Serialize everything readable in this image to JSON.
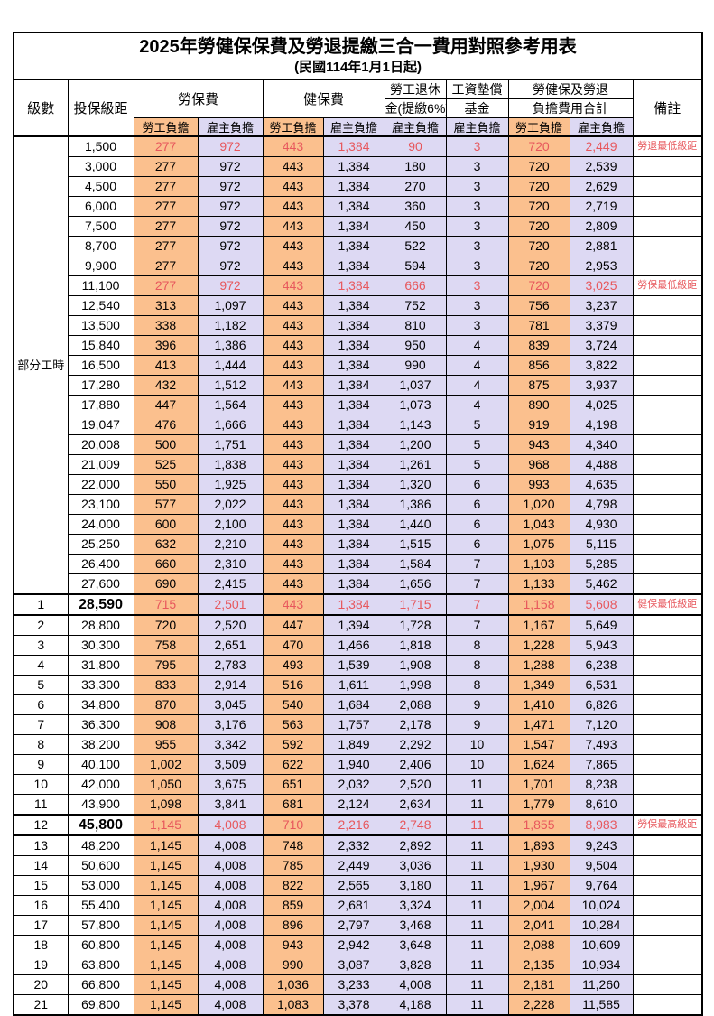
{
  "title": {
    "main": "2025年勞健保保費及勞退提繳三合一費用對照參考用表",
    "sub": "(民國114年1月1日起)"
  },
  "colors": {
    "employee_column_bg": "#FBC08E",
    "employer_column_bg": "#DDD9F3",
    "highlight_text": "#E7575C",
    "border": "#000000"
  },
  "table": {
    "headers": {
      "level": "級數",
      "salary": "投保級距",
      "labor_fee": "勞保費",
      "health_fee": "健保費",
      "pension_line1": "勞工退休",
      "pension_line2": "金(提繳6%)",
      "wage_fund_line1": "工資墊償",
      "wage_fund_line2": "基金",
      "total_line1": "勞健保及勞退",
      "total_line2": "負擔費用合計",
      "note": "備註",
      "employee": "勞工負擔",
      "employer": "雇主負擔"
    },
    "group": {
      "label": "部分工時",
      "rowspan": 23
    },
    "rows": [
      {
        "level": "",
        "salary": "1,500",
        "fees": [
          "277",
          "972",
          "443",
          "1,384",
          "90",
          "3",
          "720",
          "2,449"
        ],
        "note": "勞退最低級距",
        "red": true,
        "thick": false
      },
      {
        "level": "",
        "salary": "3,000",
        "fees": [
          "277",
          "972",
          "443",
          "1,384",
          "180",
          "3",
          "720",
          "2,539"
        ],
        "note": "",
        "red": false,
        "thick": false
      },
      {
        "level": "",
        "salary": "4,500",
        "fees": [
          "277",
          "972",
          "443",
          "1,384",
          "270",
          "3",
          "720",
          "2,629"
        ],
        "note": "",
        "red": false,
        "thick": false
      },
      {
        "level": "",
        "salary": "6,000",
        "fees": [
          "277",
          "972",
          "443",
          "1,384",
          "360",
          "3",
          "720",
          "2,719"
        ],
        "note": "",
        "red": false,
        "thick": false
      },
      {
        "level": "",
        "salary": "7,500",
        "fees": [
          "277",
          "972",
          "443",
          "1,384",
          "450",
          "3",
          "720",
          "2,809"
        ],
        "note": "",
        "red": false,
        "thick": false
      },
      {
        "level": "",
        "salary": "8,700",
        "fees": [
          "277",
          "972",
          "443",
          "1,384",
          "522",
          "3",
          "720",
          "2,881"
        ],
        "note": "",
        "red": false,
        "thick": false
      },
      {
        "level": "",
        "salary": "9,900",
        "fees": [
          "277",
          "972",
          "443",
          "1,384",
          "594",
          "3",
          "720",
          "2,953"
        ],
        "note": "",
        "red": false,
        "thick": false
      },
      {
        "level": "",
        "salary": "11,100",
        "fees": [
          "277",
          "972",
          "443",
          "1,384",
          "666",
          "3",
          "720",
          "3,025"
        ],
        "note": "勞保最低級距",
        "red": true,
        "thick": false
      },
      {
        "level": "",
        "salary": "12,540",
        "fees": [
          "313",
          "1,097",
          "443",
          "1,384",
          "752",
          "3",
          "756",
          "3,237"
        ],
        "note": "",
        "red": false,
        "thick": false
      },
      {
        "level": "",
        "salary": "13,500",
        "fees": [
          "338",
          "1,182",
          "443",
          "1,384",
          "810",
          "3",
          "781",
          "3,379"
        ],
        "note": "",
        "red": false,
        "thick": false
      },
      {
        "level": "",
        "salary": "15,840",
        "fees": [
          "396",
          "1,386",
          "443",
          "1,384",
          "950",
          "4",
          "839",
          "3,724"
        ],
        "note": "",
        "red": false,
        "thick": false
      },
      {
        "level": "",
        "salary": "16,500",
        "fees": [
          "413",
          "1,444",
          "443",
          "1,384",
          "990",
          "4",
          "856",
          "3,822"
        ],
        "note": "",
        "red": false,
        "thick": false
      },
      {
        "level": "",
        "salary": "17,280",
        "fees": [
          "432",
          "1,512",
          "443",
          "1,384",
          "1,037",
          "4",
          "875",
          "3,937"
        ],
        "note": "",
        "red": false,
        "thick": false
      },
      {
        "level": "",
        "salary": "17,880",
        "fees": [
          "447",
          "1,564",
          "443",
          "1,384",
          "1,073",
          "4",
          "890",
          "4,025"
        ],
        "note": "",
        "red": false,
        "thick": false
      },
      {
        "level": "",
        "salary": "19,047",
        "fees": [
          "476",
          "1,666",
          "443",
          "1,384",
          "1,143",
          "5",
          "919",
          "4,198"
        ],
        "note": "",
        "red": false,
        "thick": false
      },
      {
        "level": "",
        "salary": "20,008",
        "fees": [
          "500",
          "1,751",
          "443",
          "1,384",
          "1,200",
          "5",
          "943",
          "4,340"
        ],
        "note": "",
        "red": false,
        "thick": false
      },
      {
        "level": "",
        "salary": "21,009",
        "fees": [
          "525",
          "1,838",
          "443",
          "1,384",
          "1,261",
          "5",
          "968",
          "4,488"
        ],
        "note": "",
        "red": false,
        "thick": false
      },
      {
        "level": "",
        "salary": "22,000",
        "fees": [
          "550",
          "1,925",
          "443",
          "1,384",
          "1,320",
          "6",
          "993",
          "4,635"
        ],
        "note": "",
        "red": false,
        "thick": false
      },
      {
        "level": "",
        "salary": "23,100",
        "fees": [
          "577",
          "2,022",
          "443",
          "1,384",
          "1,386",
          "6",
          "1,020",
          "4,798"
        ],
        "note": "",
        "red": false,
        "thick": false
      },
      {
        "level": "",
        "salary": "24,000",
        "fees": [
          "600",
          "2,100",
          "443",
          "1,384",
          "1,440",
          "6",
          "1,043",
          "4,930"
        ],
        "note": "",
        "red": false,
        "thick": false
      },
      {
        "level": "",
        "salary": "25,250",
        "fees": [
          "632",
          "2,210",
          "443",
          "1,384",
          "1,515",
          "6",
          "1,075",
          "5,115"
        ],
        "note": "",
        "red": false,
        "thick": false
      },
      {
        "level": "",
        "salary": "26,400",
        "fees": [
          "660",
          "2,310",
          "443",
          "1,384",
          "1,584",
          "7",
          "1,103",
          "5,285"
        ],
        "note": "",
        "red": false,
        "thick": false
      },
      {
        "level": "",
        "salary": "27,600",
        "fees": [
          "690",
          "2,415",
          "443",
          "1,384",
          "1,656",
          "7",
          "1,133",
          "5,462"
        ],
        "note": "",
        "red": false,
        "thick": false
      },
      {
        "level": "1",
        "salary": "28,590",
        "fees": [
          "715",
          "2,501",
          "443",
          "1,384",
          "1,715",
          "7",
          "1,158",
          "5,608"
        ],
        "note": "健保最低級距",
        "red": true,
        "thick": true
      },
      {
        "level": "2",
        "salary": "28,800",
        "fees": [
          "720",
          "2,520",
          "447",
          "1,394",
          "1,728",
          "7",
          "1,167",
          "5,649"
        ],
        "note": "",
        "red": false,
        "thick": false
      },
      {
        "level": "3",
        "salary": "30,300",
        "fees": [
          "758",
          "2,651",
          "470",
          "1,466",
          "1,818",
          "8",
          "1,228",
          "5,943"
        ],
        "note": "",
        "red": false,
        "thick": false
      },
      {
        "level": "4",
        "salary": "31,800",
        "fees": [
          "795",
          "2,783",
          "493",
          "1,539",
          "1,908",
          "8",
          "1,288",
          "6,238"
        ],
        "note": "",
        "red": false,
        "thick": false
      },
      {
        "level": "5",
        "salary": "33,300",
        "fees": [
          "833",
          "2,914",
          "516",
          "1,611",
          "1,998",
          "8",
          "1,349",
          "6,531"
        ],
        "note": "",
        "red": false,
        "thick": false
      },
      {
        "level": "6",
        "salary": "34,800",
        "fees": [
          "870",
          "3,045",
          "540",
          "1,684",
          "2,088",
          "9",
          "1,410",
          "6,826"
        ],
        "note": "",
        "red": false,
        "thick": false
      },
      {
        "level": "7",
        "salary": "36,300",
        "fees": [
          "908",
          "3,176",
          "563",
          "1,757",
          "2,178",
          "9",
          "1,471",
          "7,120"
        ],
        "note": "",
        "red": false,
        "thick": false
      },
      {
        "level": "8",
        "salary": "38,200",
        "fees": [
          "955",
          "3,342",
          "592",
          "1,849",
          "2,292",
          "10",
          "1,547",
          "7,493"
        ],
        "note": "",
        "red": false,
        "thick": false
      },
      {
        "level": "9",
        "salary": "40,100",
        "fees": [
          "1,002",
          "3,509",
          "622",
          "1,940",
          "2,406",
          "10",
          "1,624",
          "7,865"
        ],
        "note": "",
        "red": false,
        "thick": false
      },
      {
        "level": "10",
        "salary": "42,000",
        "fees": [
          "1,050",
          "3,675",
          "651",
          "2,032",
          "2,520",
          "11",
          "1,701",
          "8,238"
        ],
        "note": "",
        "red": false,
        "thick": false
      },
      {
        "level": "11",
        "salary": "43,900",
        "fees": [
          "1,098",
          "3,841",
          "681",
          "2,124",
          "2,634",
          "11",
          "1,779",
          "8,610"
        ],
        "note": "",
        "red": false,
        "thick": false
      },
      {
        "level": "12",
        "salary": "45,800",
        "fees": [
          "1,145",
          "4,008",
          "710",
          "2,216",
          "2,748",
          "11",
          "1,855",
          "8,983"
        ],
        "note": "勞保最高級距",
        "red": true,
        "thick": true
      },
      {
        "level": "13",
        "salary": "48,200",
        "fees": [
          "1,145",
          "4,008",
          "748",
          "2,332",
          "2,892",
          "11",
          "1,893",
          "9,243"
        ],
        "note": "",
        "red": false,
        "thick": false
      },
      {
        "level": "14",
        "salary": "50,600",
        "fees": [
          "1,145",
          "4,008",
          "785",
          "2,449",
          "3,036",
          "11",
          "1,930",
          "9,504"
        ],
        "note": "",
        "red": false,
        "thick": false
      },
      {
        "level": "15",
        "salary": "53,000",
        "fees": [
          "1,145",
          "4,008",
          "822",
          "2,565",
          "3,180",
          "11",
          "1,967",
          "9,764"
        ],
        "note": "",
        "red": false,
        "thick": false
      },
      {
        "level": "16",
        "salary": "55,400",
        "fees": [
          "1,145",
          "4,008",
          "859",
          "2,681",
          "3,324",
          "11",
          "2,004",
          "10,024"
        ],
        "note": "",
        "red": false,
        "thick": false
      },
      {
        "level": "17",
        "salary": "57,800",
        "fees": [
          "1,145",
          "4,008",
          "896",
          "2,797",
          "3,468",
          "11",
          "2,041",
          "10,284"
        ],
        "note": "",
        "red": false,
        "thick": false
      },
      {
        "level": "18",
        "salary": "60,800",
        "fees": [
          "1,145",
          "4,008",
          "943",
          "2,942",
          "3,648",
          "11",
          "2,088",
          "10,609"
        ],
        "note": "",
        "red": false,
        "thick": false
      },
      {
        "level": "19",
        "salary": "63,800",
        "fees": [
          "1,145",
          "4,008",
          "990",
          "3,087",
          "3,828",
          "11",
          "2,135",
          "10,934"
        ],
        "note": "",
        "red": false,
        "thick": false
      },
      {
        "level": "20",
        "salary": "66,800",
        "fees": [
          "1,145",
          "4,008",
          "1,036",
          "3,233",
          "4,008",
          "11",
          "2,181",
          "11,260"
        ],
        "note": "",
        "red": false,
        "thick": false
      },
      {
        "level": "21",
        "salary": "69,800",
        "fees": [
          "1,145",
          "4,008",
          "1,083",
          "3,378",
          "4,188",
          "11",
          "2,228",
          "11,585"
        ],
        "note": "",
        "red": false,
        "thick": false
      }
    ]
  }
}
